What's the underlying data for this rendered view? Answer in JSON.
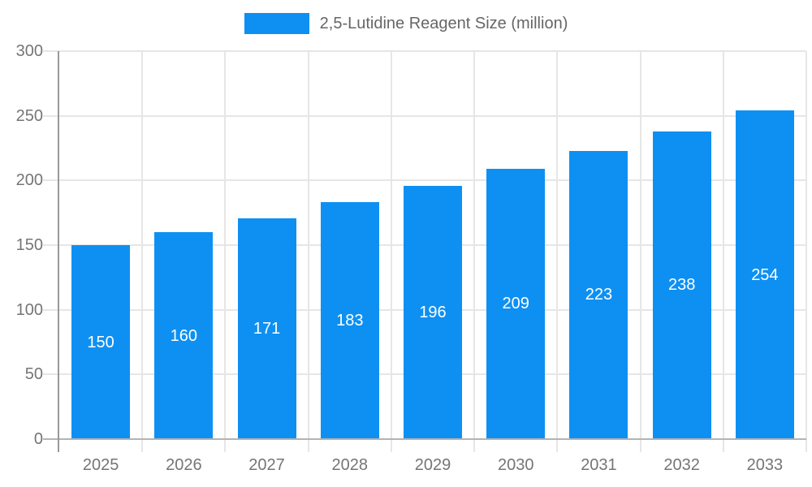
{
  "chart_data": {
    "type": "bar",
    "title": "",
    "legend_label": "2,5-Lutidine Reagent Size (million)",
    "legend_position": "top",
    "categories": [
      "2025",
      "2026",
      "2027",
      "2028",
      "2029",
      "2030",
      "2031",
      "2032",
      "2033"
    ],
    "values": [
      150,
      160,
      171,
      183,
      196,
      209,
      223,
      238,
      254
    ],
    "xlabel": "",
    "ylabel": "",
    "ylim": [
      0,
      300
    ],
    "yticks": [
      0,
      50,
      100,
      150,
      200,
      250,
      300
    ],
    "grid": true,
    "value_label_placement": "inside-center",
    "colors": {
      "bar": "#0e90f2",
      "value_label": "#ffffff",
      "axis_text": "#757575",
      "legend_text": "#666666",
      "gridline": "#e6e6e6",
      "y_axis_line": "#999999",
      "x_axis_line": "#b3b3b3",
      "background": "#ffffff"
    }
  }
}
